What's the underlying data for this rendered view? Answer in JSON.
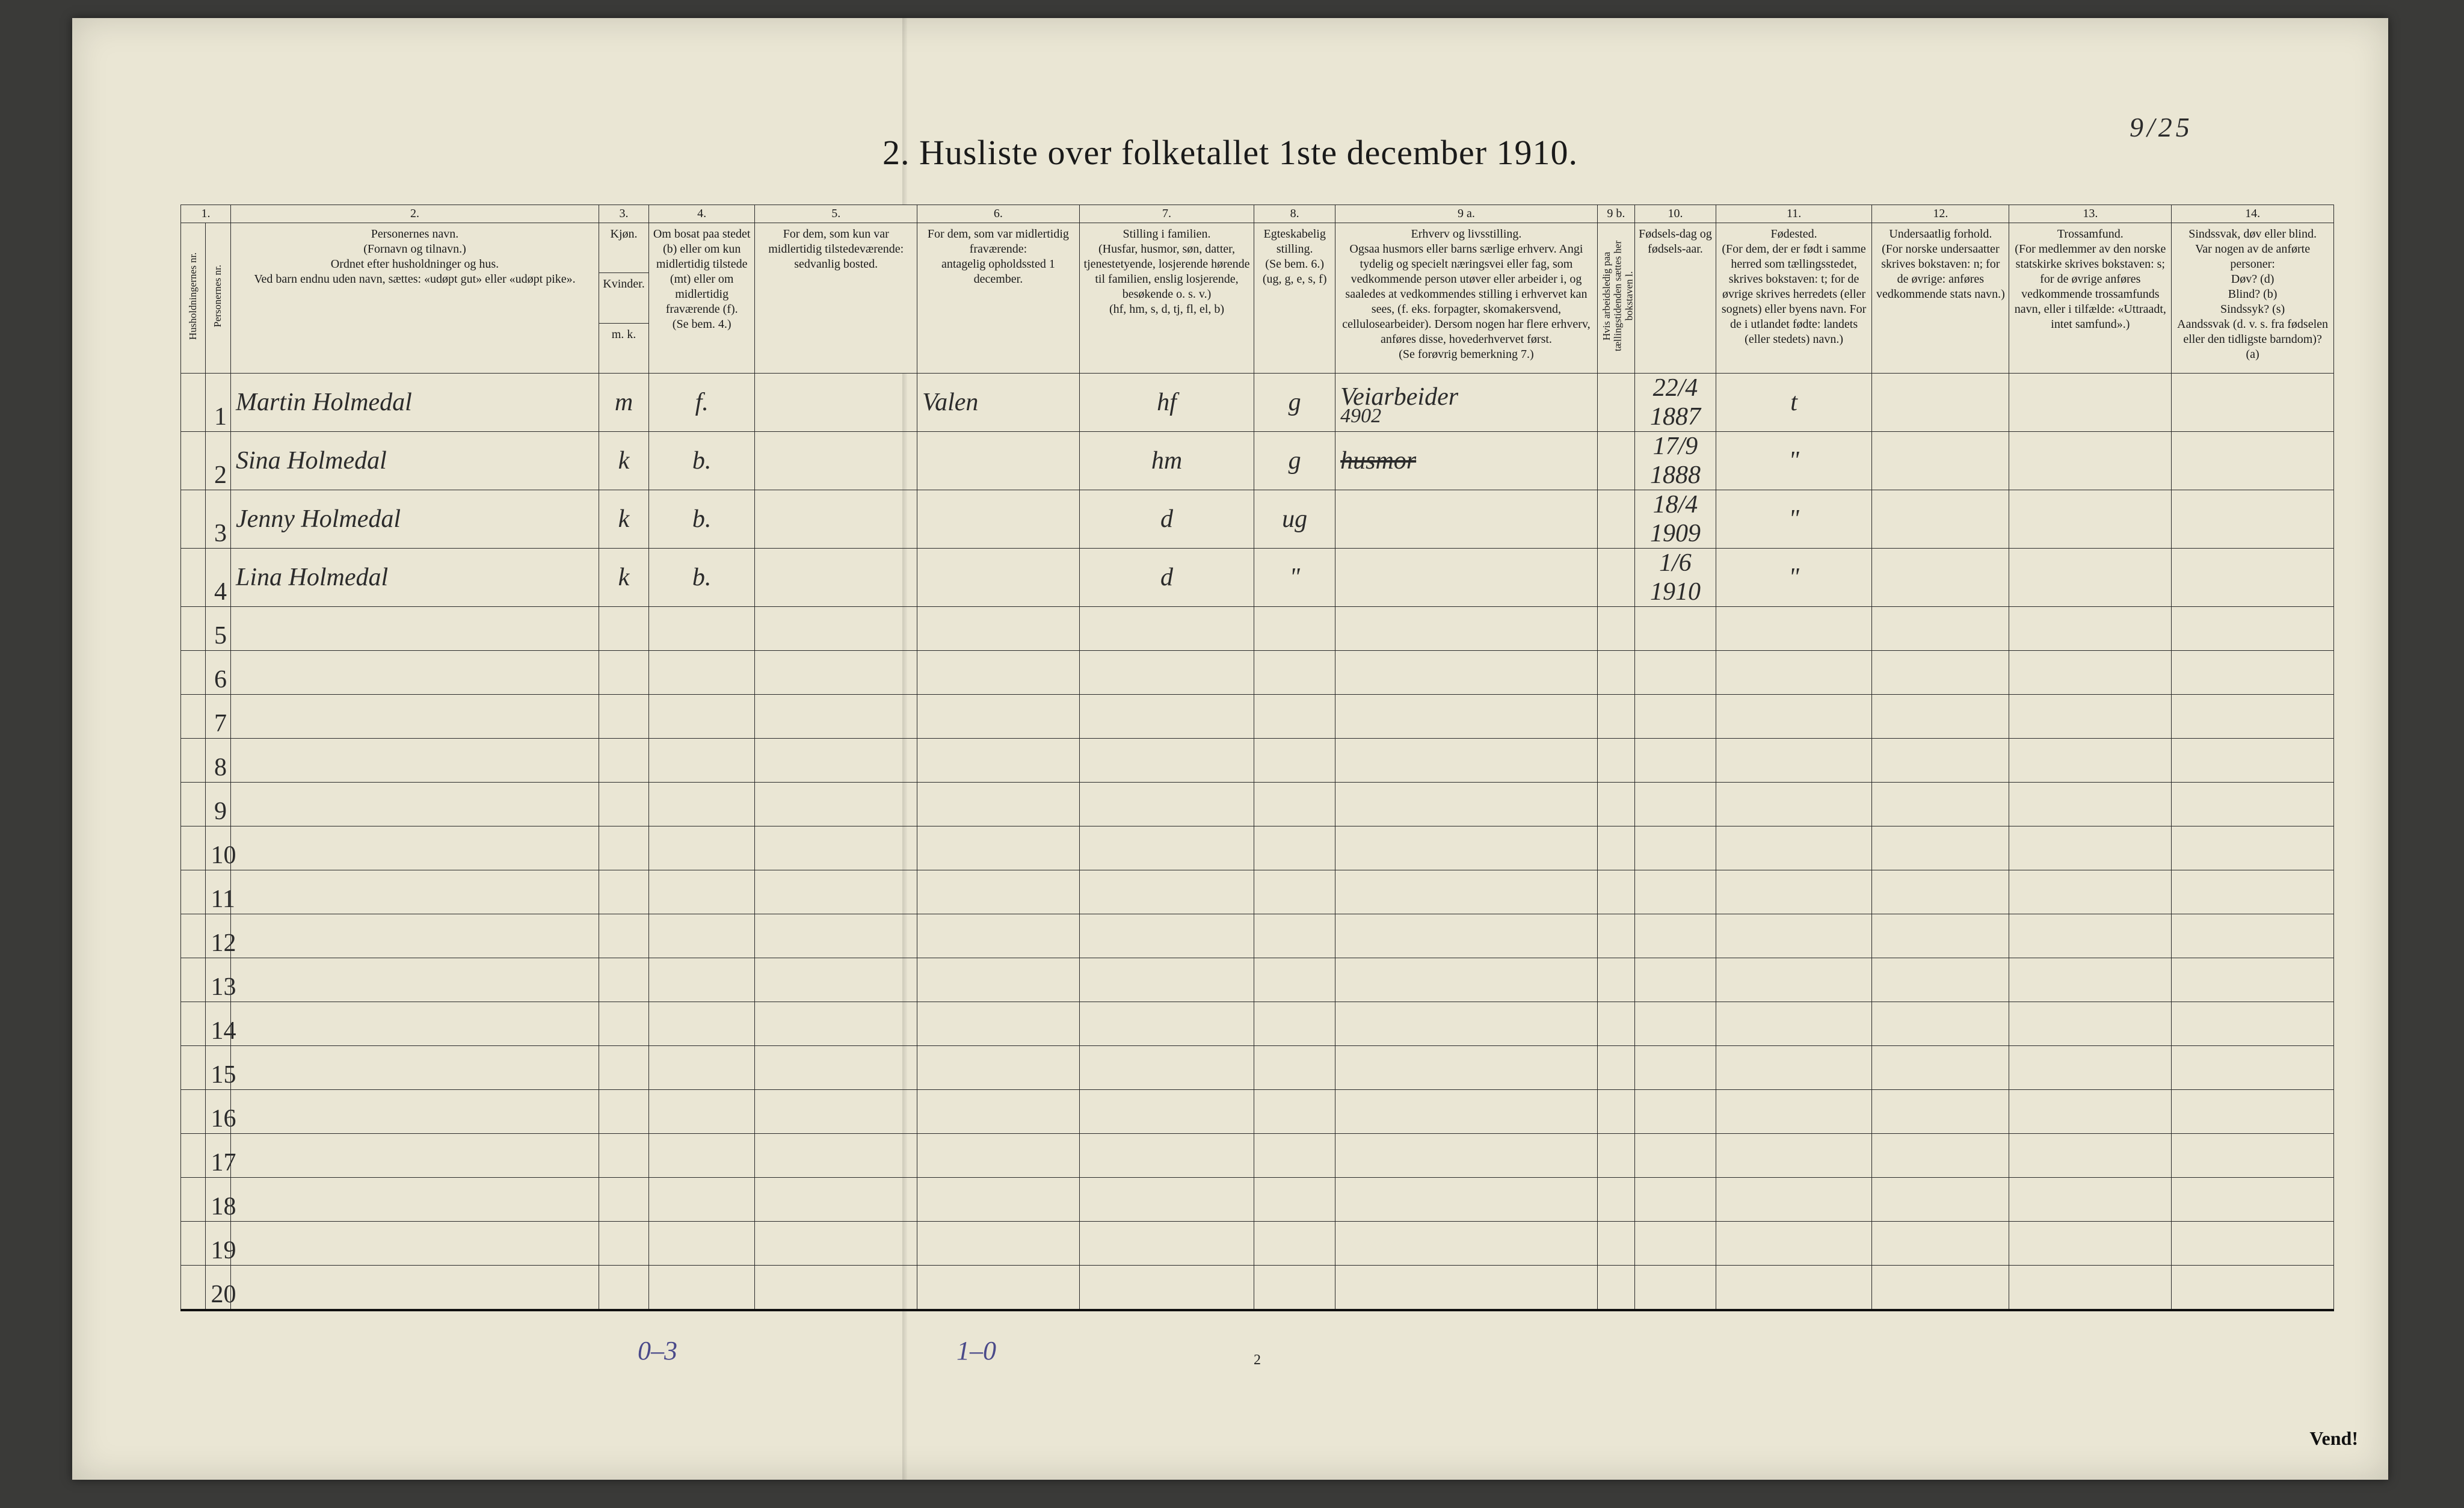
{
  "page_number_handwritten": "9/25",
  "title": "2.  Husliste over folketallet 1ste december 1910.",
  "colors": {
    "paper": "#eae6d4",
    "ink": "#1a1a1a",
    "rule": "#2a2a2a",
    "handwriting": "#2b2b2b",
    "handwriting_blue": "#4a4a8a",
    "background": "#3a3a38"
  },
  "columns": {
    "nums": [
      "1.",
      "2.",
      "3.",
      "4.",
      "5.",
      "6.",
      "7.",
      "8.",
      "9 a.",
      "9 b.",
      "10.",
      "11.",
      "12.",
      "13.",
      "14."
    ],
    "h2": "Personernes navn.\n(Fornavn og tilnavn.)\nOrdnet efter husholdninger og hus.\nVed barn endnu uden navn, sættes: «udøpt gut» eller «udøpt pike».",
    "h3": "Kjøn.",
    "h3_sub": "Kvinder.",
    "h3_mk": "m.  k.",
    "h4": "Om bosat paa stedet (b) eller om kun midlertidig tilstede (mt) eller om midlertidig fraværende (f).\n(Se bem. 4.)",
    "h5": "For dem, som kun var midlertidig tilstedeværende:\nsedvanlig bosted.",
    "h6": "For dem, som var midlertidig fraværende:\nantagelig opholdssted 1 december.",
    "h7": "Stilling i familien.\n(Husfar, husmor, søn, datter, tjenestetyende, losjerende hørende til familien, enslig losjerende, besøkende o. s. v.)\n(hf, hm, s, d, tj, fl, el, b)",
    "h8": "Egteskabelig stilling.\n(Se bem. 6.)\n(ug, g, e, s, f)",
    "h9a": "Erhverv og livsstilling.\nOgsaa husmors eller barns særlige erhverv. Angi tydelig og specielt næringsvei eller fag, som vedkommende person utøver eller arbeider i, og saaledes at vedkommendes stilling i erhvervet kan sees, (f. eks. forpagter, skomakersvend, cellulosearbeider). Dersom nogen har flere erhverv, anføres disse, hovederhvervet først.\n(Se forøvrig bemerkning 7.)",
    "h9b": "Hvis arbeidsledig paa tællingstidenden sættes her bokstaven l.",
    "h10": "Fødsels-dag og fødsels-aar.",
    "h11": "Fødested.\n(For dem, der er født i samme herred som tællingsstedet, skrives bokstaven: t; for de øvrige skrives herredets (eller sognets) eller byens navn. For de i utlandet fødte: landets (eller stedets) navn.)",
    "h12": "Undersaatlig forhold.\n(For norske undersaatter skrives bokstaven: n; for de øvrige: anføres vedkommende stats navn.)",
    "h13": "Trossamfund.\n(For medlemmer av den norske statskirke skrives bokstaven: s; for de øvrige anføres vedkommende trossamfunds navn, eller i tilfælde: «Uttraadt, intet samfund».)",
    "h14": "Sindssvak, døv eller blind.\nVar nogen av de anførte personer:\nDøv?  (d)\nBlind?  (b)\nSindssyk?  (s)\nAandssvak (d. v. s. fra fødselen eller den tidligste barndom)?  (a)",
    "h1a": "Husholdningernes nr.",
    "h1b": "Personernes nr."
  },
  "rows": [
    {
      "num": "1",
      "name": "Martin Holmedal",
      "sex": "m",
      "res": "f.",
      "away": "",
      "where": "Valen",
      "fam": "hf",
      "mar": "g",
      "occ": "Veiarbeider",
      "occ_sub": "4902",
      "dob": "22/4 1887",
      "born": "t"
    },
    {
      "num": "2",
      "name": "Sina Holmedal",
      "sex": "k",
      "res": "b.",
      "away": "",
      "where": "",
      "fam": "hm",
      "mar": "g",
      "occ": "husmor",
      "occ_struck": true,
      "dob": "17/9 1888",
      "born": "\""
    },
    {
      "num": "3",
      "name": "Jenny Holmedal",
      "sex": "k",
      "res": "b.",
      "away": "",
      "where": "",
      "fam": "d",
      "mar": "ug",
      "occ": "",
      "dob": "18/4 1909",
      "born": "\""
    },
    {
      "num": "4",
      "name": "Lina Holmedal",
      "sex": "k",
      "res": "b.",
      "away": "",
      "where": "",
      "fam": "d",
      "mar": "\"",
      "occ": "",
      "dob": "1/6 1910",
      "born": "\""
    }
  ],
  "blank_rows": [
    "5",
    "6",
    "7",
    "8",
    "9",
    "10",
    "11",
    "12",
    "13",
    "14",
    "15",
    "16",
    "17",
    "18",
    "19",
    "20"
  ],
  "footer": {
    "hand1": "0–3",
    "hand2": "1–0",
    "printed_page": "2",
    "vend": "Vend!"
  }
}
